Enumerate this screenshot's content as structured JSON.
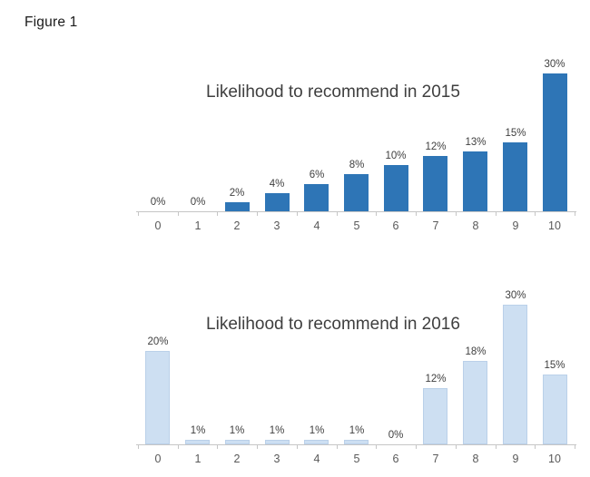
{
  "figure_label": "Figure 1",
  "colors": {
    "bar_2015": "#2E75B6",
    "bar_2016_fill": "#CDDFF2",
    "bar_2016_border": "#BAD0E9",
    "axis": "#C6C6C6",
    "value_label": "#404040",
    "tick_label": "#595959",
    "title": "#3F3F3F"
  },
  "chart_data": [
    {
      "type": "bar",
      "title": "Likelihood to recommend in 2015",
      "categories": [
        "0",
        "1",
        "2",
        "3",
        "4",
        "5",
        "6",
        "7",
        "8",
        "9",
        "10"
      ],
      "values": [
        0,
        0,
        2,
        4,
        6,
        8,
        10,
        12,
        13,
        15,
        30
      ],
      "value_labels": [
        "0%",
        "0%",
        "2%",
        "4%",
        "6%",
        "8%",
        "10%",
        "12%",
        "13%",
        "15%",
        "30%"
      ],
      "xlabel": "",
      "ylabel": "",
      "ylim": [
        0,
        32
      ],
      "grid": false,
      "legend": "none",
      "bar_color_key": "bar_2015"
    },
    {
      "type": "bar",
      "title": "Likelihood to recommend in 2016",
      "categories": [
        "0",
        "1",
        "2",
        "3",
        "4",
        "5",
        "6",
        "7",
        "8",
        "9",
        "10"
      ],
      "values": [
        20,
        1,
        1,
        1,
        1,
        1,
        0,
        12,
        18,
        30,
        15
      ],
      "value_labels": [
        "20%",
        "1%",
        "1%",
        "1%",
        "1%",
        "1%",
        "0%",
        "12%",
        "18%",
        "30%",
        "15%"
      ],
      "xlabel": "",
      "ylabel": "",
      "ylim": [
        0,
        32
      ],
      "grid": false,
      "legend": "none",
      "bar_color_key": "bar_2016_fill"
    }
  ]
}
